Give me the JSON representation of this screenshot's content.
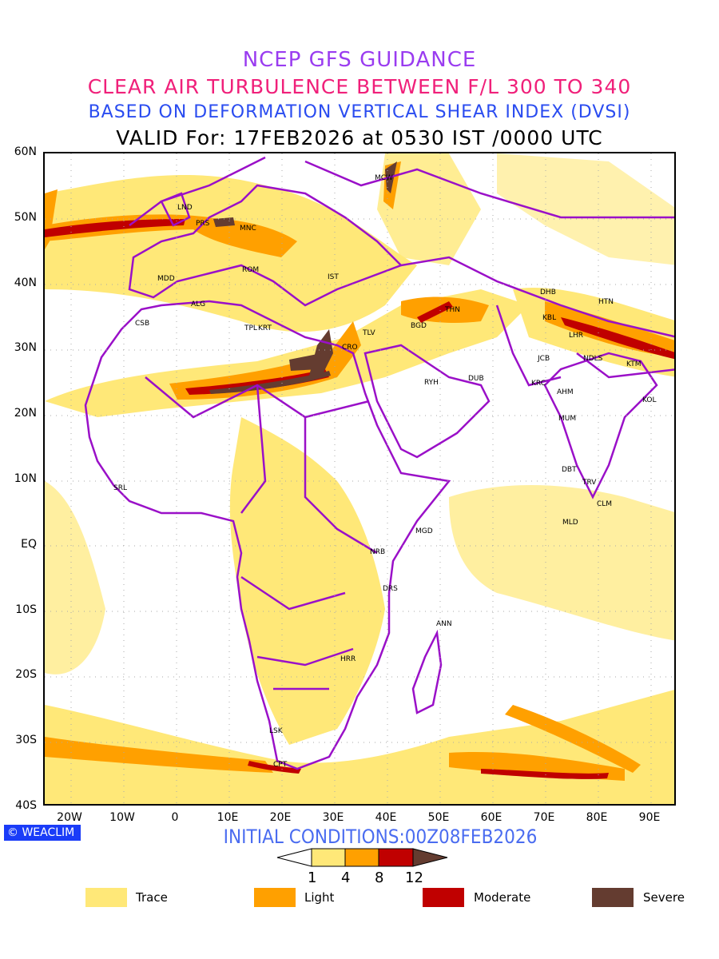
{
  "title": {
    "line1": "NCEP GFS GUIDANCE",
    "line2": "CLEAR AIR TURBULENCE BETWEEN F/L 300 TO 340",
    "line3": "BASED ON DEFORMATION VERTICAL SHEAR INDEX (DVSI)",
    "line4": "VALID For: 17FEB2026 at 0530 IST /0000 UTC"
  },
  "axes": {
    "lat_labels": [
      "60N",
      "50N",
      "40N",
      "30N",
      "20N",
      "10N",
      "EQ",
      "10S",
      "20S",
      "30S",
      "40S"
    ],
    "lon_labels": [
      "20W",
      "10W",
      "0",
      "10E",
      "20E",
      "30E",
      "40E",
      "50E",
      "60E",
      "70E",
      "80E",
      "90E"
    ]
  },
  "cities": [
    "MCW",
    "LND",
    "PRS",
    "MNC",
    "ROM",
    "IST",
    "MDD",
    "ALG",
    "CSB",
    "TPL",
    "KRT",
    "CRO",
    "TLV",
    "BGD",
    "THN",
    "DHB",
    "HTN",
    "KBL",
    "LHR",
    "JCB",
    "NDLS",
    "KTM",
    "RYH",
    "DUB",
    "KRC",
    "AHM",
    "KOL",
    "MUM",
    "DBT",
    "TRV",
    "CLM",
    "MLD",
    "SRL",
    "MGD",
    "NRB",
    "DRS",
    "ANN",
    "HRR",
    "LSK",
    "CPT"
  ],
  "logo": "WEACLIM",
  "initial_conditions": "INITIAL CONDITIONS:00Z08FEB2026",
  "colorbar": {
    "ticks": [
      "1",
      "4",
      "8",
      "12"
    ],
    "colors": [
      "#ffe878",
      "#ffa000",
      "#c00000",
      "#643c30"
    ]
  },
  "legend": [
    {
      "label": "Trace",
      "color": "#ffe878"
    },
    {
      "label": "Light",
      "color": "#ffa000"
    },
    {
      "label": "Moderate",
      "color": "#c00000"
    },
    {
      "label": "Severe",
      "color": "#643c30"
    }
  ],
  "border_color": "#9a10c8"
}
